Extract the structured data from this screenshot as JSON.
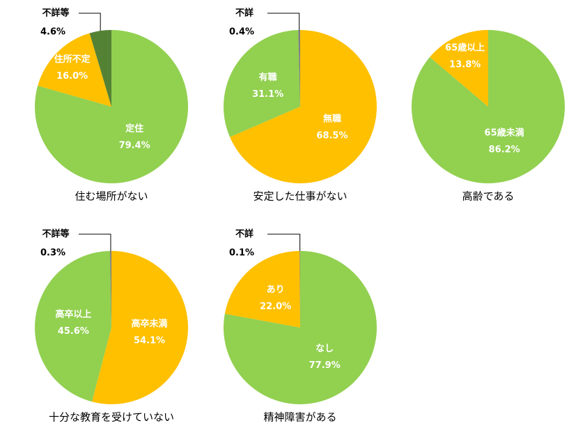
{
  "chart_data": [
    {
      "type": "pie",
      "title": "住む場所がない",
      "categories": [
        "定住",
        "住所不定",
        "不詳等"
      ],
      "values": [
        79.4,
        16.0,
        4.6
      ],
      "value_labels": [
        "79.4%",
        "16.0%",
        "4.6%"
      ],
      "colors": [
        "#92d050",
        "#ffc000",
        "#548235"
      ]
    },
    {
      "type": "pie",
      "title": "安定した仕事がない",
      "categories": [
        "無職",
        "有職",
        "不詳"
      ],
      "values": [
        68.5,
        31.1,
        0.4
      ],
      "value_labels": [
        "68.5%",
        "31.1%",
        "0.4%"
      ],
      "colors": [
        "#ffc000",
        "#92d050",
        "#7f7f7f"
      ]
    },
    {
      "type": "pie",
      "title": "高齢である",
      "categories": [
        "65歳未満",
        "65歳以上"
      ],
      "values": [
        86.2,
        13.8
      ],
      "value_labels": [
        "86.2%",
        "13.8%"
      ],
      "colors": [
        "#92d050",
        "#ffc000"
      ]
    },
    {
      "type": "pie",
      "title": "十分な教育を受けていない",
      "categories": [
        "高卒未満",
        "高卒以上",
        "不詳等"
      ],
      "values": [
        54.1,
        45.6,
        0.3
      ],
      "value_labels": [
        "54.1%",
        "45.6%",
        "0.3%"
      ],
      "colors": [
        "#ffc000",
        "#92d050",
        "#7f7f7f"
      ]
    },
    {
      "type": "pie",
      "title": "精神障害がある",
      "categories": [
        "なし",
        "あり",
        "不詳"
      ],
      "values": [
        77.9,
        22.0,
        0.1
      ],
      "value_labels": [
        "77.9%",
        "22.0%",
        "0.1%"
      ],
      "colors": [
        "#92d050",
        "#ffc000",
        "#7f7f7f"
      ]
    }
  ]
}
